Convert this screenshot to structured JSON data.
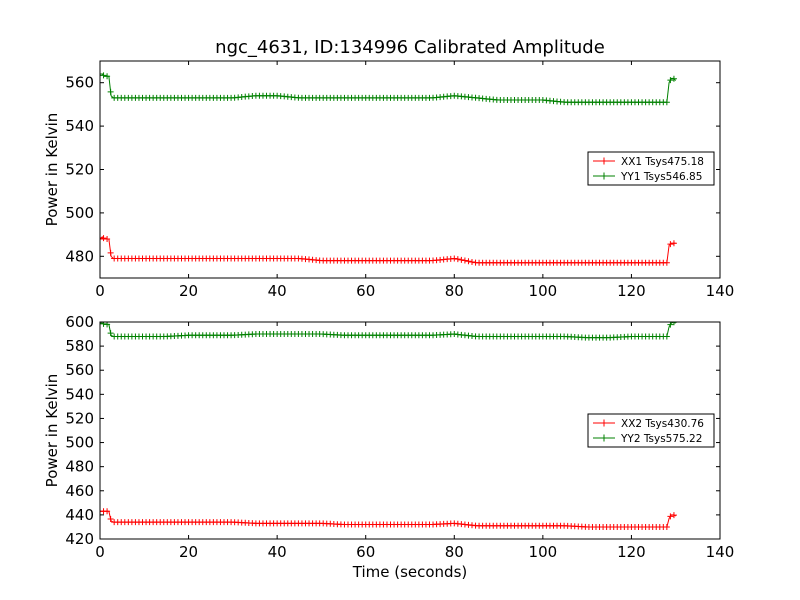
{
  "figure_title": "ngc_4631, ID:134996 Calibrated Amplitude",
  "chart_data": [
    {
      "type": "line",
      "title": "ngc_4631, ID:134996 Calibrated Amplitude",
      "xlabel": "",
      "ylabel": "Power in Kelvin",
      "xlim": [
        0,
        140
      ],
      "ylim": [
        470,
        570
      ],
      "xticks": [
        "0",
        "20",
        "40",
        "60",
        "80",
        "100",
        "120",
        "140"
      ],
      "yticks": [
        "480",
        "500",
        "520",
        "540",
        "560"
      ],
      "grid": false,
      "legend_position": "right",
      "series": [
        {
          "name": "XX1 Tsys475.18",
          "color": "#ff0000",
          "x": [
            0,
            0.5,
            1,
            1.5,
            2,
            2.5,
            3,
            5,
            10,
            15,
            20,
            25,
            30,
            35,
            40,
            45,
            50,
            55,
            60,
            65,
            70,
            75,
            80,
            85,
            90,
            95,
            100,
            105,
            110,
            115,
            120,
            125,
            128,
            128.5,
            129,
            129.5,
            130
          ],
          "y": [
            488,
            489,
            488,
            488,
            488,
            480,
            479,
            479,
            479,
            479,
            479,
            479,
            479,
            479,
            479,
            479,
            478,
            478,
            478,
            478,
            478,
            478,
            479,
            477,
            477,
            477,
            477,
            477,
            477,
            477,
            477,
            477,
            477,
            485,
            486,
            486,
            486
          ]
        },
        {
          "name": "YY1 Tsys546.85",
          "color": "#008000",
          "x": [
            0,
            0.5,
            1,
            1.5,
            2,
            2.5,
            3,
            5,
            10,
            15,
            20,
            25,
            30,
            35,
            40,
            45,
            50,
            55,
            60,
            65,
            70,
            75,
            80,
            85,
            90,
            95,
            100,
            105,
            110,
            115,
            120,
            125,
            128,
            128.5,
            129,
            129.5,
            130
          ],
          "y": [
            564,
            564,
            563,
            563,
            563,
            554,
            553,
            553,
            553,
            553,
            553,
            553,
            553,
            554,
            554,
            553,
            553,
            553,
            553,
            553,
            553,
            553,
            554,
            553,
            552,
            552,
            552,
            551,
            551,
            551,
            551,
            551,
            551,
            560,
            562,
            562,
            561
          ]
        }
      ]
    },
    {
      "type": "line",
      "title": "",
      "xlabel": "Time (seconds)",
      "ylabel": "Power in Kelvin",
      "xlim": [
        0,
        140
      ],
      "ylim": [
        420,
        600
      ],
      "xticks": [
        "0",
        "20",
        "40",
        "60",
        "80",
        "100",
        "120",
        "140"
      ],
      "yticks": [
        "420",
        "440",
        "460",
        "480",
        "500",
        "520",
        "540",
        "560",
        "580",
        "600"
      ],
      "grid": false,
      "legend_position": "right",
      "series": [
        {
          "name": "XX2 Tsys430.76",
          "color": "#ff0000",
          "x": [
            0,
            0.5,
            1,
            1.5,
            2,
            2.5,
            3,
            5,
            10,
            15,
            20,
            25,
            30,
            35,
            40,
            45,
            50,
            55,
            60,
            65,
            70,
            75,
            80,
            85,
            90,
            95,
            100,
            105,
            110,
            115,
            120,
            125,
            128,
            128.5,
            129,
            129.5,
            130
          ],
          "y": [
            443,
            443,
            443,
            443,
            443,
            435,
            434,
            434,
            434,
            434,
            434,
            434,
            434,
            433,
            433,
            433,
            433,
            432,
            432,
            432,
            432,
            432,
            433,
            431,
            431,
            431,
            431,
            431,
            430,
            430,
            430,
            430,
            430,
            437,
            440,
            440,
            439
          ]
        },
        {
          "name": "YY2 Tsys575.22",
          "color": "#008000",
          "x": [
            0,
            0.5,
            1,
            1.5,
            2,
            2.5,
            3,
            5,
            10,
            15,
            20,
            25,
            30,
            35,
            40,
            45,
            50,
            55,
            60,
            65,
            70,
            75,
            80,
            85,
            90,
            95,
            100,
            105,
            110,
            115,
            120,
            125,
            128,
            128.5,
            129,
            129.5,
            130
          ],
          "y": [
            599,
            599,
            598,
            598,
            598,
            589,
            588,
            588,
            588,
            588,
            589,
            589,
            589,
            590,
            590,
            590,
            590,
            589,
            589,
            589,
            589,
            589,
            590,
            588,
            588,
            588,
            588,
            588,
            587,
            587,
            588,
            588,
            588,
            596,
            599,
            600,
            599
          ]
        }
      ]
    }
  ]
}
